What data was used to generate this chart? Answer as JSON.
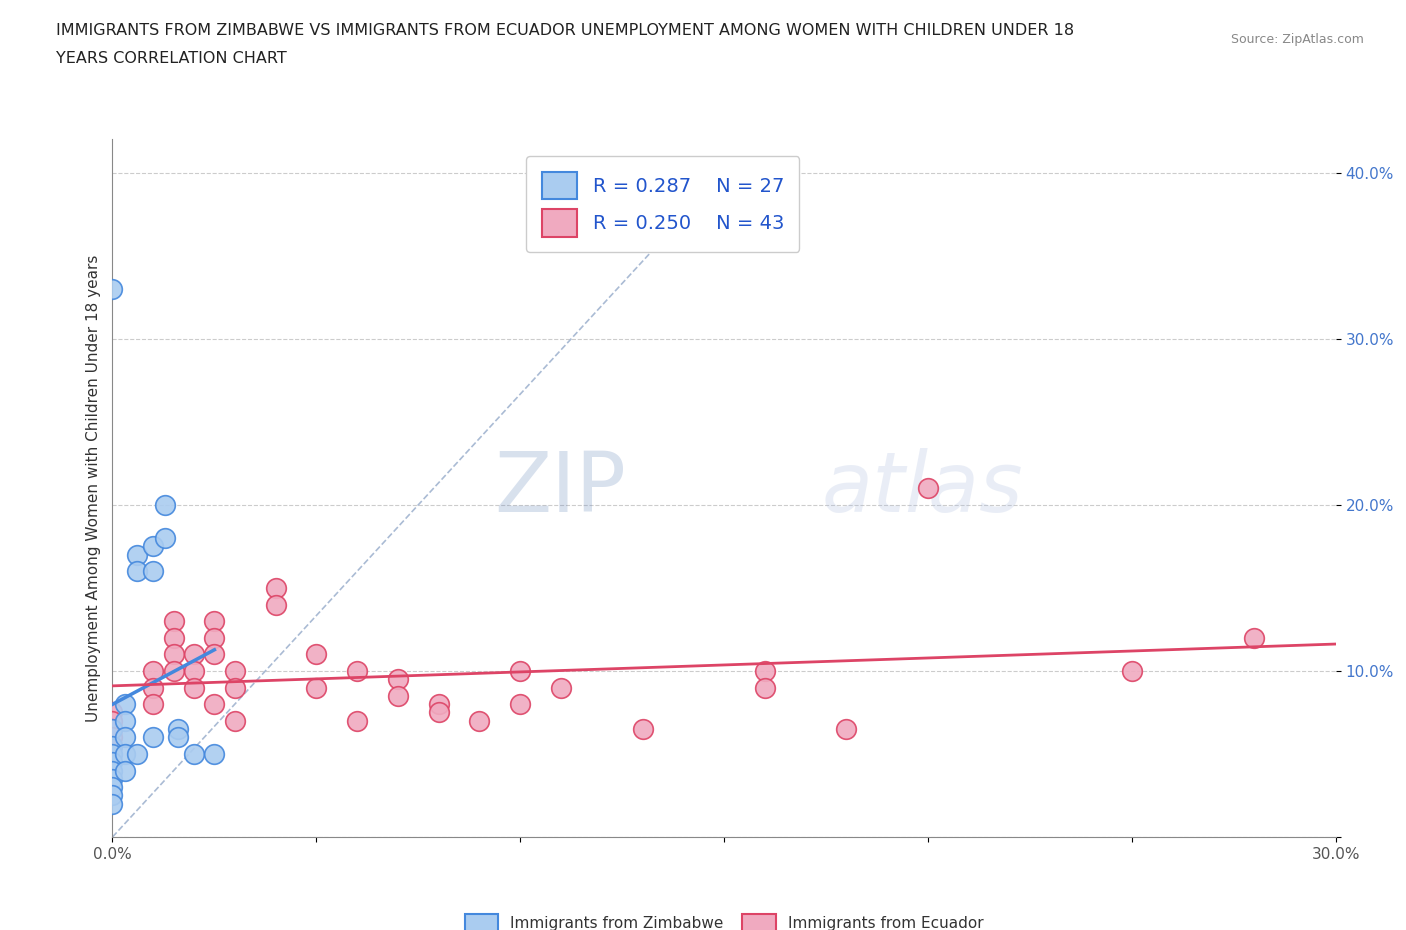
{
  "title_line1": "IMMIGRANTS FROM ZIMBABWE VS IMMIGRANTS FROM ECUADOR UNEMPLOYMENT AMONG WOMEN WITH CHILDREN UNDER 18",
  "title_line2": "YEARS CORRELATION CHART",
  "source": "Source: ZipAtlas.com",
  "ylabel": "Unemployment Among Women with Children Under 18 years",
  "xlim": [
    0.0,
    0.3
  ],
  "ylim": [
    0.0,
    0.42
  ],
  "legend_r_zimbabwe": "0.287",
  "legend_n_zimbabwe": "27",
  "legend_r_ecuador": "0.250",
  "legend_n_ecuador": "43",
  "color_zimbabwe_fill": "#aaccf0",
  "color_ecuador_fill": "#f0aac0",
  "color_zimbabwe_line": "#4488dd",
  "color_ecuador_line": "#dd4466",
  "color_diagonal": "#aabbd4",
  "watermark_zip": "ZIP",
  "watermark_atlas": "atlas",
  "zimbabwe_x": [
    0.0,
    0.0,
    0.0,
    0.0,
    0.0,
    0.0,
    0.0,
    0.0,
    0.0,
    0.0,
    0.003,
    0.003,
    0.003,
    0.003,
    0.003,
    0.006,
    0.006,
    0.006,
    0.01,
    0.01,
    0.01,
    0.013,
    0.013,
    0.016,
    0.016,
    0.02,
    0.025
  ],
  "zimbabwe_y": [
    0.33,
    0.065,
    0.055,
    0.05,
    0.045,
    0.04,
    0.035,
    0.03,
    0.025,
    0.02,
    0.08,
    0.07,
    0.06,
    0.05,
    0.04,
    0.17,
    0.16,
    0.05,
    0.175,
    0.16,
    0.06,
    0.2,
    0.18,
    0.065,
    0.06,
    0.05,
    0.05
  ],
  "ecuador_x": [
    0.0,
    0.0,
    0.0,
    0.0,
    0.0,
    0.01,
    0.01,
    0.01,
    0.015,
    0.015,
    0.015,
    0.015,
    0.02,
    0.02,
    0.02,
    0.025,
    0.025,
    0.025,
    0.025,
    0.03,
    0.03,
    0.03,
    0.04,
    0.04,
    0.05,
    0.05,
    0.06,
    0.06,
    0.07,
    0.07,
    0.08,
    0.08,
    0.09,
    0.1,
    0.1,
    0.11,
    0.13,
    0.16,
    0.16,
    0.18,
    0.2,
    0.25,
    0.28
  ],
  "ecuador_y": [
    0.075,
    0.07,
    0.065,
    0.06,
    0.055,
    0.1,
    0.09,
    0.08,
    0.13,
    0.12,
    0.11,
    0.1,
    0.11,
    0.1,
    0.09,
    0.13,
    0.12,
    0.11,
    0.08,
    0.1,
    0.09,
    0.07,
    0.15,
    0.14,
    0.11,
    0.09,
    0.1,
    0.07,
    0.095,
    0.085,
    0.08,
    0.075,
    0.07,
    0.1,
    0.08,
    0.09,
    0.065,
    0.1,
    0.09,
    0.065,
    0.21,
    0.1,
    0.12
  ]
}
